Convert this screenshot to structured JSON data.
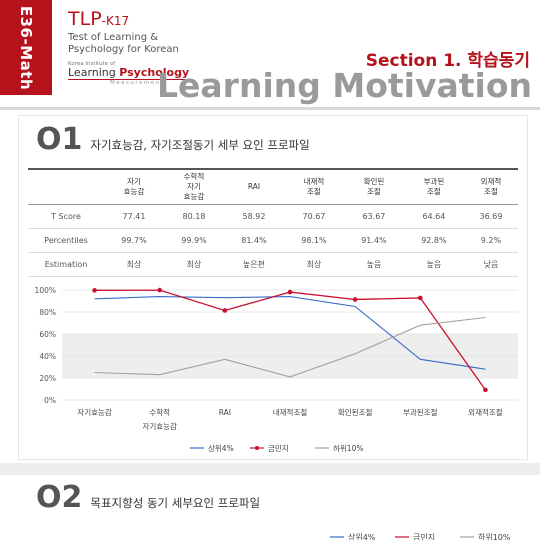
{
  "sidebar": {
    "label": "E36-Math"
  },
  "brand": {
    "title_main": "TLP",
    "title_suffix": "-K17",
    "sub_line1": "Test of Learning &",
    "sub_line2": "Psychology for Korean",
    "inst": "Korea Institute of",
    "lp_learning": "Learning",
    "lp_psychology": "Psychology",
    "measurement": "Measurement"
  },
  "section": {
    "label": "Section 1. 학습동기",
    "title": "Learning Motivation"
  },
  "colors": {
    "accent": "#b5121b",
    "upper": "#3a6bc9",
    "self": "#c8102e",
    "lower": "#a0a0a0"
  },
  "section1": {
    "num": "O1",
    "title": "자기효능감, 자기조절동기 세부 요인 프로파일"
  },
  "table": {
    "headers": [
      [
        "자기",
        "효능감"
      ],
      [
        "수학적",
        "자기",
        "효능감"
      ],
      [
        "RAI"
      ],
      [
        "내재적",
        "조절"
      ],
      [
        "확인된",
        "조절"
      ],
      [
        "부과된",
        "조절"
      ],
      [
        "외재적",
        "조절"
      ]
    ],
    "rows": [
      {
        "label": "T Score",
        "values": [
          "77.41",
          "80.18",
          "58.92",
          "70.67",
          "63.67",
          "64.64",
          "36.69"
        ]
      },
      {
        "label": "Percentiles",
        "values": [
          "99.7%",
          "99.9%",
          "81.4%",
          "98.1%",
          "91.4%",
          "92.8%",
          "9.2%"
        ]
      },
      {
        "label": "Estimation",
        "values": [
          "최상",
          "최상",
          "높은편",
          "최상",
          "높음",
          "높음",
          "낮음"
        ]
      }
    ]
  },
  "chart_data": {
    "type": "line",
    "categories": [
      [
        "자기효능감"
      ],
      [
        "수학적",
        "자기효능감"
      ],
      [
        "RAI"
      ],
      [
        "내재적조절"
      ],
      [
        "확인된조절"
      ],
      [
        "부과된조절"
      ],
      [
        "외재적조절"
      ]
    ],
    "y_ticks": [
      "0%",
      "20%",
      "40%",
      "60%",
      "80%",
      "100%"
    ],
    "ylim": [
      0,
      100
    ],
    "shaded_band": [
      20,
      60
    ],
    "series": [
      {
        "name": "상위4%",
        "color": "#3a6bc9",
        "marker": "none",
        "values": [
          92,
          94,
          93,
          94,
          85,
          37,
          28
        ]
      },
      {
        "name": "금민지",
        "color": "#c8102e",
        "marker": "dot",
        "values": [
          99.7,
          99.9,
          81.4,
          98.1,
          91.4,
          92.8,
          9.2
        ]
      },
      {
        "name": "하위10%",
        "color": "#a0a0a0",
        "marker": "none",
        "values": [
          25,
          23,
          37,
          21,
          42,
          68,
          75
        ]
      }
    ],
    "legend_position": "bottom-center"
  },
  "section2": {
    "num": "O2",
    "title": "목표지향성 동기 세부요인 프로파일"
  },
  "legend2": {
    "items": [
      "상위4%",
      "금민지",
      "하위10%"
    ]
  }
}
